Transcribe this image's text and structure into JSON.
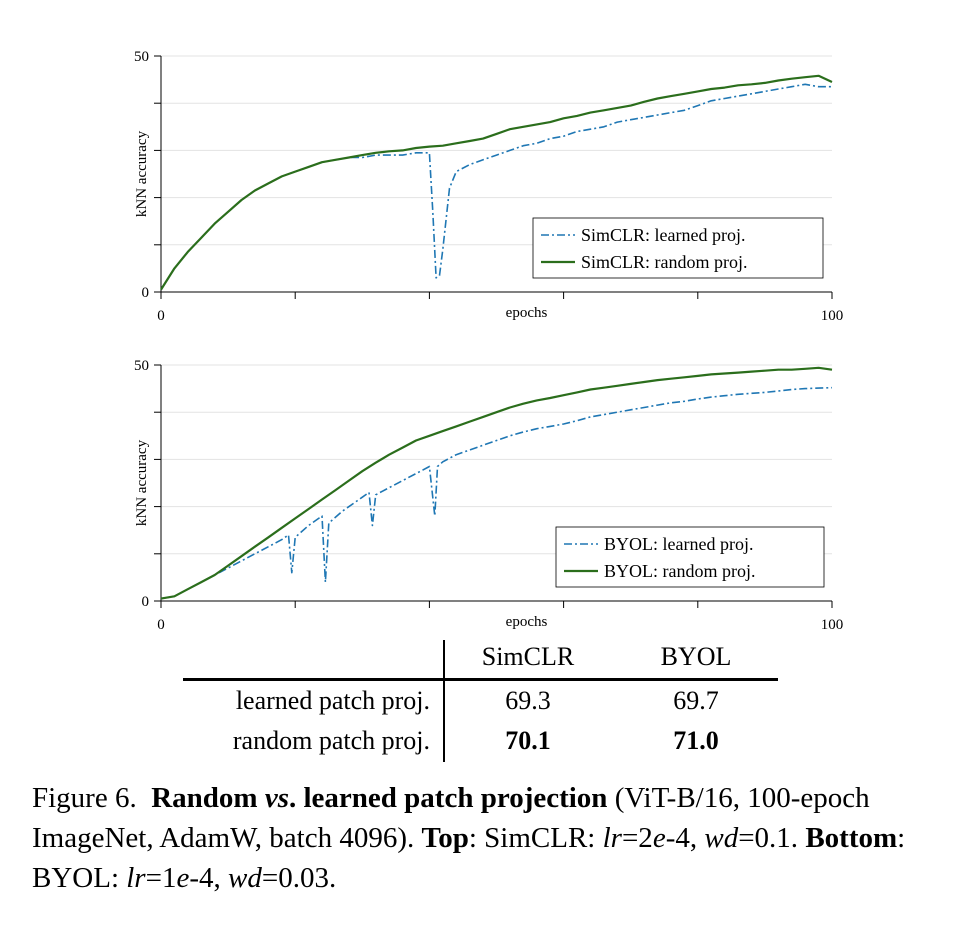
{
  "chart_data": [
    {
      "type": "line",
      "id": "top",
      "xlabel": "epochs",
      "ylabel": "kNN accuracy",
      "xlim": [
        0,
        100
      ],
      "ylim": [
        0,
        50
      ],
      "xticks": [
        0,
        20,
        40,
        60,
        80,
        100
      ],
      "xtick_labels": [
        "0",
        "",
        "",
        "",
        "",
        "100"
      ],
      "yticks": [
        0,
        10,
        20,
        30,
        40,
        50
      ],
      "ytick_labels": [
        "0",
        "",
        "",
        "",
        "",
        "50"
      ],
      "grid": true,
      "legend_position": "bottom-right",
      "series": [
        {
          "name": "SimCLR: learned proj.",
          "color": "#1f77b4",
          "style": "dashdot",
          "x": [
            0,
            2,
            4,
            6,
            8,
            10,
            12,
            14,
            16,
            18,
            20,
            22,
            24,
            26,
            28,
            30,
            32,
            34,
            36,
            38,
            40,
            40.5,
            41,
            41.5,
            42,
            43,
            44,
            46,
            48,
            50,
            52,
            54,
            56,
            58,
            60,
            62,
            64,
            66,
            68,
            70,
            72,
            74,
            76,
            78,
            80,
            82,
            84,
            86,
            88,
            90,
            92,
            94,
            96,
            98,
            100
          ],
          "values": [
            0.5,
            5,
            8.5,
            11.5,
            14.5,
            17,
            19.5,
            21.5,
            23,
            24.5,
            25.5,
            26.5,
            27.5,
            28,
            28.5,
            28.5,
            29,
            29,
            29,
            29.5,
            29.5,
            17,
            3,
            3.5,
            9,
            22,
            25.5,
            27,
            28,
            29,
            30,
            31,
            31.5,
            32.5,
            33,
            34,
            34.5,
            35,
            36,
            36.5,
            37,
            37.5,
            38,
            38.5,
            39.5,
            40.5,
            41,
            41.5,
            42,
            42.5,
            43,
            43.5,
            44,
            43.5,
            43.5
          ]
        },
        {
          "name": "SimCLR: random proj.",
          "color": "#2b6e1c",
          "style": "solid",
          "x": [
            0,
            2,
            4,
            6,
            8,
            10,
            12,
            14,
            16,
            18,
            20,
            22,
            24,
            26,
            28,
            30,
            32,
            34,
            36,
            38,
            40,
            42,
            44,
            46,
            48,
            50,
            52,
            54,
            56,
            58,
            60,
            62,
            64,
            66,
            68,
            70,
            72,
            74,
            76,
            78,
            80,
            82,
            84,
            86,
            88,
            90,
            92,
            94,
            96,
            98,
            100
          ],
          "values": [
            0.5,
            5,
            8.5,
            11.5,
            14.5,
            17,
            19.5,
            21.5,
            23,
            24.5,
            25.5,
            26.5,
            27.5,
            28,
            28.5,
            29,
            29.5,
            29.8,
            30,
            30.5,
            30.8,
            31,
            31.5,
            32,
            32.5,
            33.5,
            34.5,
            35,
            35.5,
            36,
            36.8,
            37.3,
            38,
            38.5,
            39,
            39.5,
            40.3,
            41,
            41.5,
            42,
            42.5,
            43,
            43.3,
            43.8,
            44,
            44.3,
            44.8,
            45.2,
            45.5,
            45.8,
            44.5
          ]
        }
      ]
    },
    {
      "type": "line",
      "id": "bottom",
      "xlabel": "epochs",
      "ylabel": "kNN accuracy",
      "xlim": [
        0,
        100
      ],
      "ylim": [
        0,
        50
      ],
      "xticks": [
        0,
        20,
        40,
        60,
        80,
        100
      ],
      "xtick_labels": [
        "0",
        "",
        "",
        "",
        "",
        "100"
      ],
      "yticks": [
        0,
        10,
        20,
        30,
        40,
        50
      ],
      "ytick_labels": [
        "0",
        "",
        "",
        "",
        "",
        "50"
      ],
      "grid": true,
      "legend_position": "bottom-right",
      "series": [
        {
          "name": "BYOL: learned proj.",
          "color": "#1f77b4",
          "style": "dashdot",
          "x": [
            0,
            2,
            4,
            6,
            8,
            10,
            12,
            14,
            16,
            18,
            19,
            19.5,
            20,
            22,
            24,
            24.5,
            25,
            27,
            30,
            31,
            31.5,
            32,
            34,
            36,
            38,
            40,
            40.8,
            41.2,
            42,
            44,
            46,
            48,
            50,
            52,
            54,
            56,
            58,
            60,
            62,
            64,
            66,
            68,
            70,
            72,
            74,
            76,
            78,
            80,
            82,
            84,
            86,
            88,
            90,
            92,
            94,
            96,
            98,
            100
          ],
          "values": [
            0.5,
            1,
            2.5,
            4,
            5.5,
            7,
            8.5,
            10,
            11.5,
            13,
            14,
            6,
            13.5,
            16,
            18,
            4,
            16.5,
            19,
            22,
            23,
            16,
            22.5,
            24,
            25.5,
            27,
            28.5,
            18,
            28.5,
            29.5,
            31,
            32,
            33,
            34,
            35,
            35.8,
            36.5,
            37,
            37.5,
            38.2,
            39,
            39.5,
            40,
            40.5,
            41,
            41.5,
            42,
            42.3,
            42.8,
            43.2,
            43.5,
            43.8,
            44,
            44.2,
            44.5,
            44.8,
            45,
            45.1,
            45.2
          ]
        },
        {
          "name": "BYOL: random proj.",
          "color": "#2b6e1c",
          "style": "solid",
          "x": [
            0,
            2,
            4,
            6,
            8,
            10,
            12,
            14,
            16,
            18,
            20,
            22,
            24,
            26,
            28,
            30,
            32,
            34,
            36,
            38,
            40,
            42,
            44,
            46,
            48,
            50,
            52,
            54,
            56,
            58,
            60,
            62,
            64,
            66,
            68,
            70,
            72,
            74,
            76,
            78,
            80,
            82,
            84,
            86,
            88,
            90,
            92,
            94,
            96,
            98,
            100
          ],
          "values": [
            0.5,
            1,
            2.5,
            4,
            5.5,
            7.5,
            9.5,
            11.5,
            13.5,
            15.5,
            17.5,
            19.5,
            21.5,
            23.5,
            25.5,
            27.5,
            29.3,
            31,
            32.5,
            34,
            35,
            36,
            37,
            38,
            39,
            40,
            41,
            41.8,
            42.5,
            43,
            43.6,
            44.2,
            44.8,
            45.2,
            45.6,
            46,
            46.4,
            46.8,
            47.1,
            47.4,
            47.7,
            48,
            48.2,
            48.4,
            48.6,
            48.8,
            49,
            49,
            49.2,
            49.4,
            49
          ]
        }
      ]
    }
  ],
  "table": {
    "headers": [
      "SimCLR",
      "BYOL"
    ],
    "rows": [
      {
        "label": "learned patch proj.",
        "simclr": "69.3",
        "byol": "69.7"
      },
      {
        "label": "random patch proj.",
        "simclr": "70.1",
        "byol": "71.0"
      }
    ]
  },
  "caption": {
    "prefix": "Figure 6.",
    "bold_a": "Random",
    "italic_vs": "vs",
    "bold_b": ". learned patch projection",
    "plain_a": " (ViT-B/16, 100-epoch ImageNet, AdamW, batch 4096). ",
    "top_label": "Top",
    "top_text": ": SimCLR: ",
    "lr_sym": "lr",
    "top_lr_val_a": "=2",
    "e_sym": "e",
    "top_lr_val_b": "-4, ",
    "wd_sym": "wd",
    "top_wd_val": "=0.1. ",
    "bottom_label": "Bottom",
    "bottom_text": ": BYOL: ",
    "bottom_lr_val_a": "=1",
    "bottom_lr_val_b": "-4, ",
    "bottom_wd_val": "=0.03."
  }
}
